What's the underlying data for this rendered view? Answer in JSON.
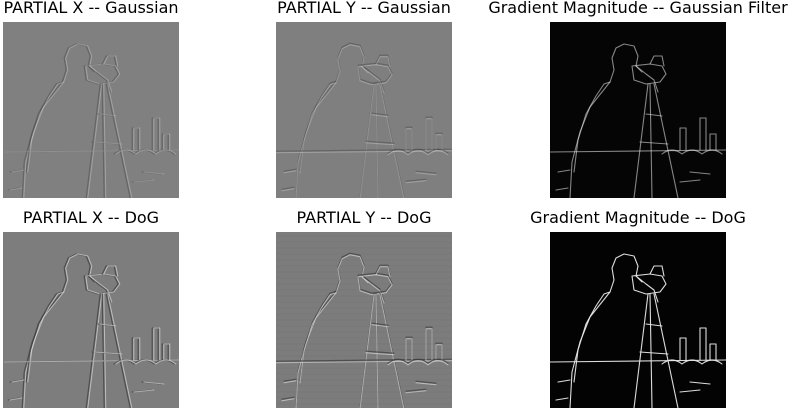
{
  "panels": [
    {
      "title": "PARTIAL X -- Gaussian",
      "style": "emboss-x",
      "background": "#808080"
    },
    {
      "title": "PARTIAL Y -- Gaussian",
      "style": "emboss-y",
      "background": "#7f7f7f"
    },
    {
      "title": "Gradient Magnitude -- Gaussian Filter",
      "style": "magnitude",
      "background": "#050505"
    },
    {
      "title": "PARTIAL X -- DoG",
      "style": "emboss-x",
      "background": "#7d7d7d"
    },
    {
      "title": "PARTIAL Y -- DoG",
      "style": "emboss-y",
      "background": "#7c7c7c"
    },
    {
      "title": "Gradient Magnitude -- DoG",
      "style": "magnitude",
      "background": "#030303"
    }
  ]
}
